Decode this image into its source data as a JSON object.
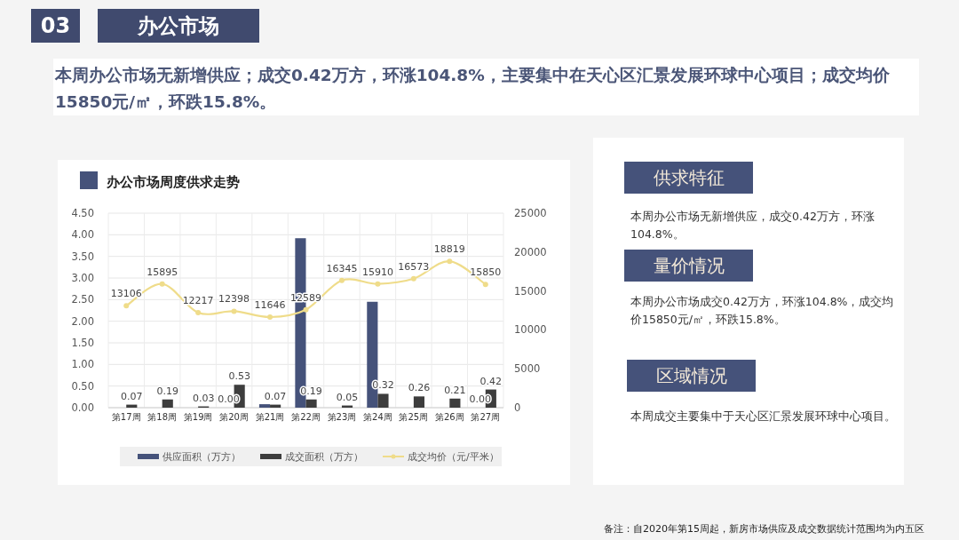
{
  "chart_data": {
    "type": "bar",
    "title": "办公市场周度供求走势",
    "categories": [
      "第17周",
      "第18周",
      "第19周",
      "第20周",
      "第21周",
      "第22周",
      "第23周",
      "第24周",
      "第25周",
      "第26周",
      "第27周"
    ],
    "series": [
      {
        "name": "供应面积（万方）",
        "color": "#45527a",
        "values": [
          null,
          null,
          null,
          0,
          0.08,
          3.92,
          null,
          2.45,
          null,
          null,
          0
        ],
        "value_labels": [
          null,
          null,
          null,
          "0.00",
          null,
          null,
          null,
          null,
          null,
          null,
          "0.00"
        ]
      },
      {
        "name": "成交面积（万方）",
        "color": "#3d3d3d",
        "values": [
          0.07,
          0.19,
          0.03,
          0.53,
          0.07,
          0.19,
          0.05,
          0.32,
          0.26,
          0.21,
          0.42
        ],
        "value_labels": [
          "0.07",
          "0.19",
          "0.03",
          "0.53",
          "0.07",
          "0.19",
          "0.05",
          "0.32",
          "0.26",
          "0.21",
          "0.42"
        ]
      },
      {
        "name": "成交均价（元/平米）",
        "type": "line",
        "axis": "y2",
        "color": "#efdc8a",
        "marker": "circle",
        "values": [
          13106,
          15895,
          12217,
          12398,
          11646,
          12589,
          16345,
          15910,
          16573,
          18819,
          15850
        ],
        "value_labels": [
          "13106",
          "15895",
          "12217",
          "12398",
          "11646",
          "12589",
          "16345",
          "15910",
          "16573",
          "18819",
          "15850"
        ]
      }
    ],
    "ylim": [
      0,
      4.5
    ],
    "yticks": [
      {
        "value": 0,
        "label": "0.00"
      },
      {
        "value": 0.5,
        "label": "0.50"
      },
      {
        "value": 1,
        "label": "1.00"
      },
      {
        "value": 1.5,
        "label": "1.50"
      },
      {
        "value": 2,
        "label": "2.00"
      },
      {
        "value": 2.5,
        "label": "2.50"
      },
      {
        "value": 3,
        "label": "3.00"
      },
      {
        "value": 3.5,
        "label": "3.50"
      },
      {
        "value": 4,
        "label": "4.00"
      },
      {
        "value": 4.5,
        "label": "4.50"
      }
    ],
    "y2lim": [
      0,
      25000
    ],
    "y2ticks": [
      0,
      5000,
      10000,
      15000,
      20000,
      25000
    ],
    "grid": true,
    "legend": "bottom",
    "annotations": [
      "03",
      "办公市场",
      "本周办公市场无新增供应；成交0.42万方，环涨104.8%，主要集中在天心区汇景发展环球中心项目；成交均价15850元/㎡，环跌15.8%。",
      "供求特征",
      "本周办公市场无新增供应，成交0.42万方，环涨104.8%。",
      "量价情况",
      "本周办公市场成交0.42万方，环涨104.8%，成交均价15850元/㎡，环跌15.8%。",
      "区域情况",
      "本周成交主要集中于天心区汇景发展环球中心项目。",
      "备注：自2020年第15周起，新房市场供应及成交数据统计范围均为内五区"
    ]
  }
}
